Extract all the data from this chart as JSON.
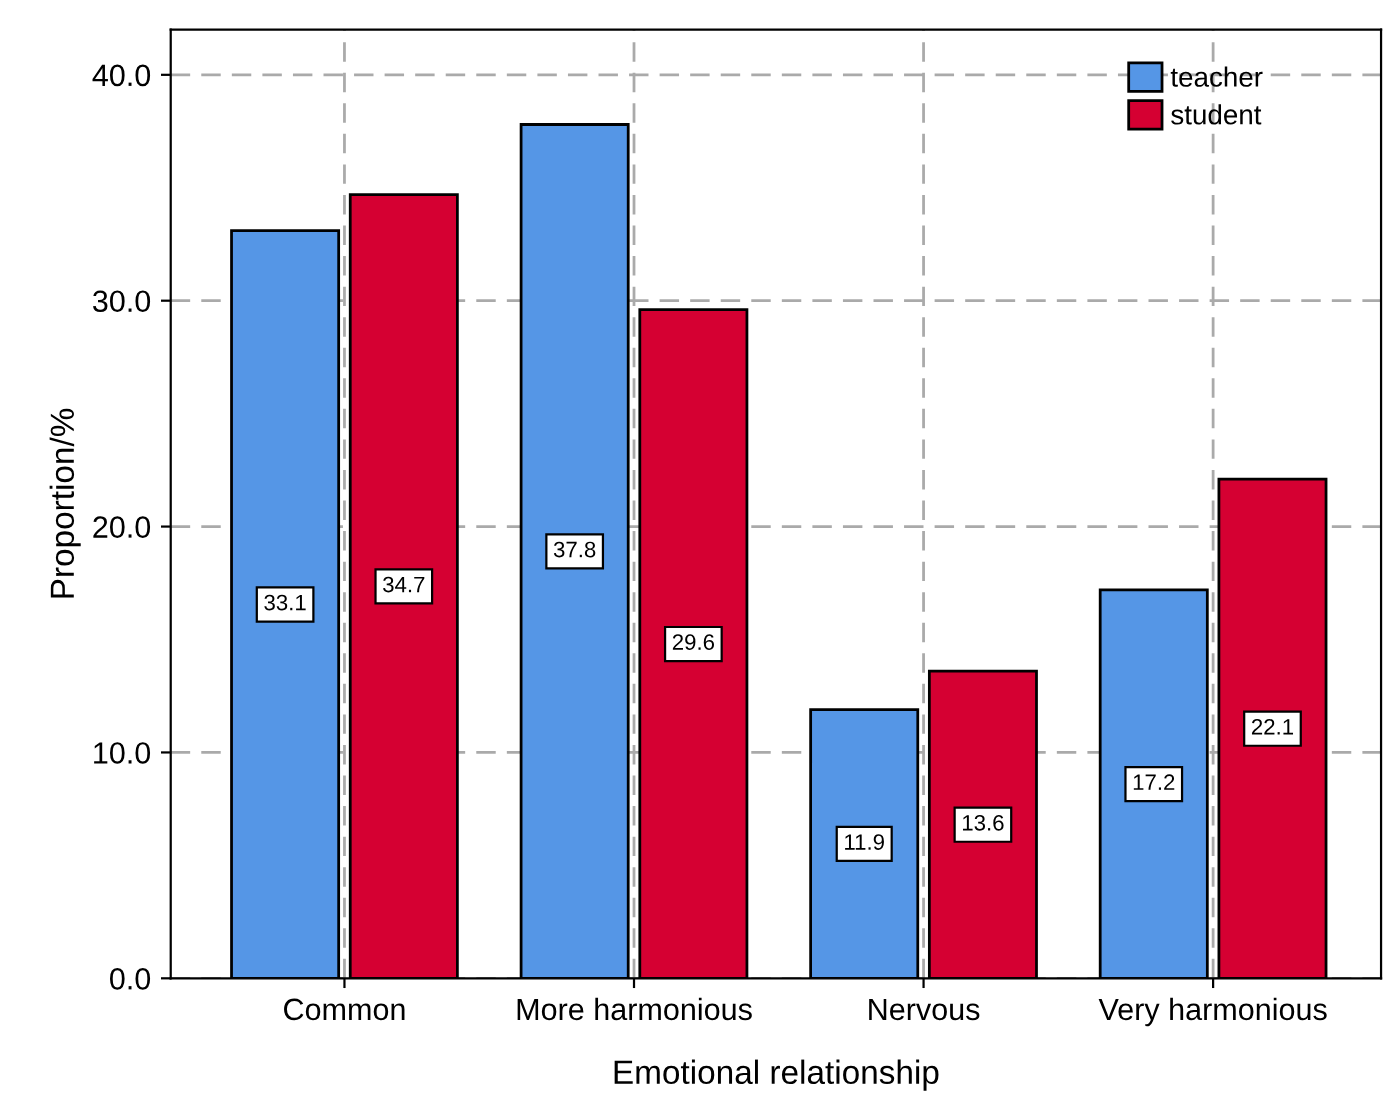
{
  "chart_data": {
    "type": "bar",
    "xlabel": "Emotional relationship",
    "ylabel": "Proportion/%",
    "categories": [
      "Common",
      "More harmonious",
      "Nervous",
      "Very harmonious"
    ],
    "series": [
      {
        "name": "teacher",
        "color": "#5596e6",
        "values": [
          33.1,
          37.8,
          11.9,
          17.2
        ]
      },
      {
        "name": "student",
        "color": "#d50032",
        "values": [
          34.7,
          29.6,
          13.6,
          22.1
        ]
      }
    ],
    "ylim": [
      0,
      42
    ],
    "yticks": [
      {
        "value": 0,
        "label": "0.0"
      },
      {
        "value": 10,
        "label": "10.0"
      },
      {
        "value": 20,
        "label": "20.0"
      },
      {
        "value": 30,
        "label": "30.0"
      },
      {
        "value": 40,
        "label": "40.0"
      }
    ],
    "grid": true,
    "legend": "top right",
    "data_labels": true
  }
}
